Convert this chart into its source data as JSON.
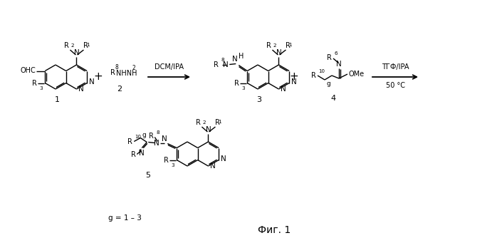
{
  "background_color": "#ffffff",
  "fig_width": 6.98,
  "fig_height": 3.41,
  "dpi": 100,
  "caption": "Фиг. 1",
  "label_g": "g = 1 – 3",
  "reagent_dcm": "DCM/IPA",
  "reagent_tgf": "ТГФ/IPA",
  "temp": "50 °C",
  "text_color": "#000000",
  "line_color": "#000000",
  "fs": 7.0,
  "fs_label": 8.5,
  "fs_caption": 10,
  "lw": 1.0
}
